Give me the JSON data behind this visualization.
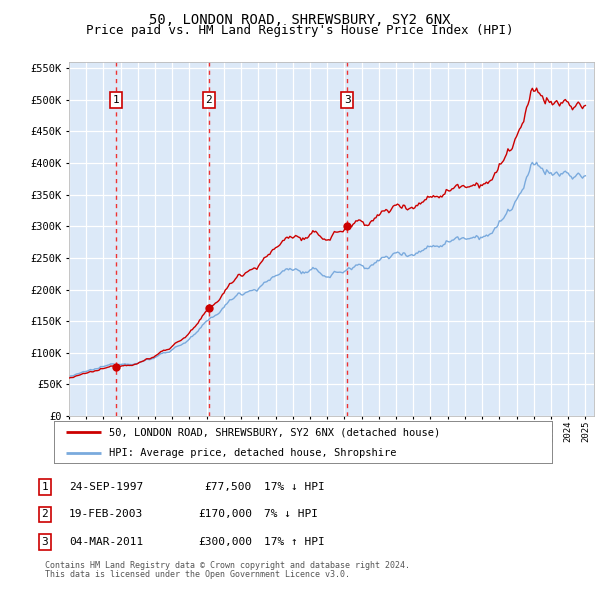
{
  "title": "50, LONDON ROAD, SHREWSBURY, SY2 6NX",
  "subtitle": "Price paid vs. HM Land Registry's House Price Index (HPI)",
  "legend_line1": "50, LONDON ROAD, SHREWSBURY, SY2 6NX (detached house)",
  "legend_line2": "HPI: Average price, detached house, Shropshire",
  "footnote1": "Contains HM Land Registry data © Crown copyright and database right 2024.",
  "footnote2": "This data is licensed under the Open Government Licence v3.0.",
  "transactions": [
    {
      "num": 1,
      "date": "24-SEP-1997",
      "price": 77500,
      "year": 1997.73,
      "hpi_diff": "17% ↓ HPI"
    },
    {
      "num": 2,
      "date": "19-FEB-2003",
      "price": 170000,
      "year": 2003.13,
      "hpi_diff": "7% ↓ HPI"
    },
    {
      "num": 3,
      "date": "04-MAR-2011",
      "price": 300000,
      "year": 2011.17,
      "hpi_diff": "17% ↑ HPI"
    }
  ],
  "ylim": [
    0,
    560000
  ],
  "ytick_step": 50000,
  "xlim_start": 1995.0,
  "xlim_end": 2025.5,
  "bg_color": "#dce9f8",
  "grid_color": "#ffffff",
  "red_line_color": "#cc0000",
  "blue_line_color": "#7aaadd",
  "dot_color": "#cc0000",
  "vline_color": "#ee3333",
  "box_edge_color": "#cc0000",
  "title_fontsize": 10,
  "subtitle_fontsize": 9
}
